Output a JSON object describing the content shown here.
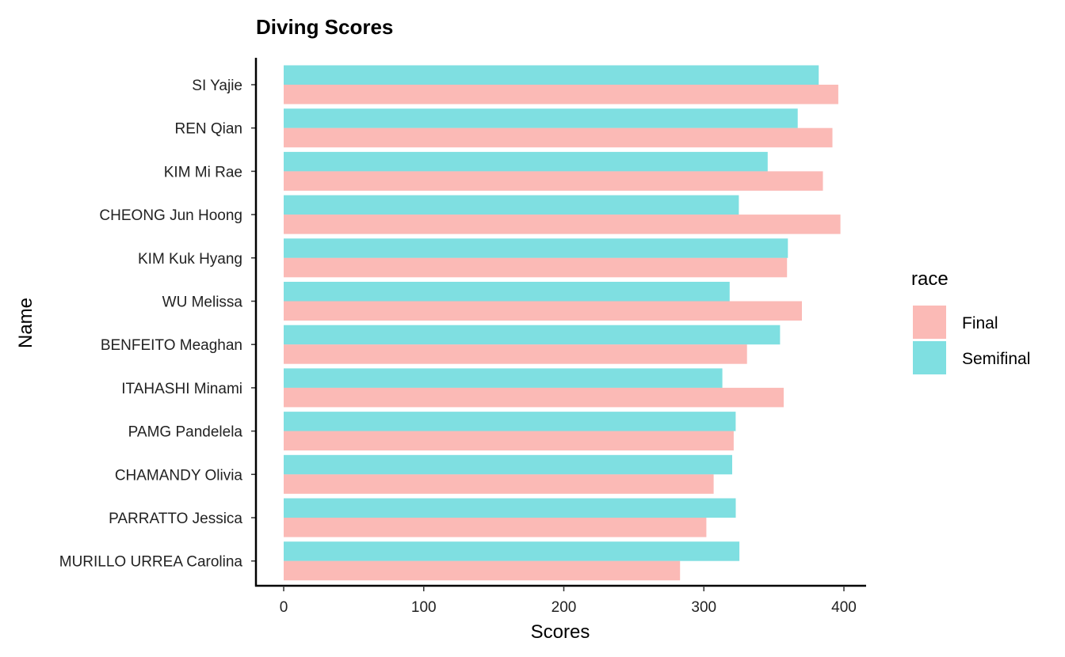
{
  "chart_data": {
    "type": "bar",
    "orientation": "horizontal",
    "title": "Diving Scores",
    "xlabel": "Scores",
    "ylabel": "Name",
    "xlim": [
      0,
      415
    ],
    "x_ticks": [
      0,
      100,
      200,
      300,
      400
    ],
    "grid": false,
    "legend": {
      "title": "race",
      "position": "right"
    },
    "categories": [
      "SI Yajie",
      "REN Qian",
      "KIM Mi Rae",
      "CHEONG Jun Hoong",
      "KIM Kuk Hyang",
      "WU Melissa",
      "BENFEITO Meaghan",
      "ITAHASHI Minami",
      "PAMG Pandelela",
      "CHAMANDY Olivia",
      "PARRATTO Jessica",
      "MURILLO URREA Carolina"
    ],
    "series": [
      {
        "name": "Final",
        "color": "#F8766D",
        "values": [
          396.0,
          391.8,
          385.0,
          397.5,
          359.4,
          370.0,
          330.8,
          357.0,
          321.3,
          307.0,
          301.8,
          283.0
        ]
      },
      {
        "name": "Semifinal",
        "color": "#00BFC4",
        "values": [
          382.0,
          367.0,
          345.6,
          325.0,
          360.0,
          318.4,
          354.4,
          313.2,
          322.7,
          320.2,
          322.8,
          325.4
        ]
      }
    ],
    "bar_opacity": 0.5
  }
}
